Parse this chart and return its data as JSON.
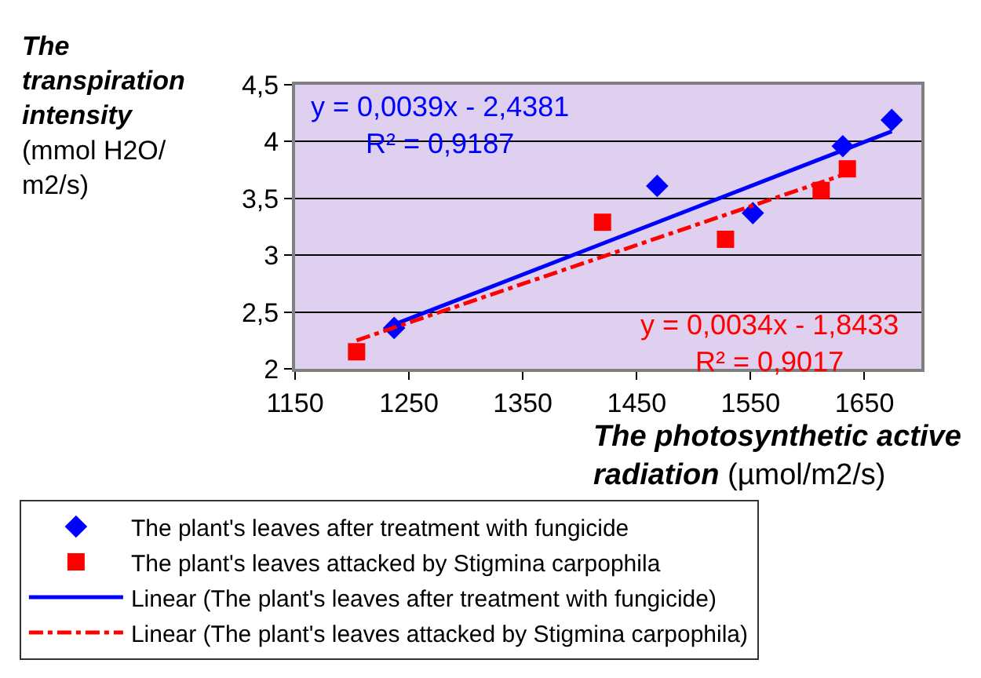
{
  "chart_data": {
    "type": "scatter",
    "xlabel": "The photosynthetic active radiation (µmol/m2/s)",
    "ylabel": "The transpiration intensity (mmol H2O/ m2/s)",
    "series": [
      {
        "name": "The plant's leaves after treatment with fungicide",
        "marker": "diamond",
        "color": "#0000ff",
        "x": [
          1237,
          1468,
          1552,
          1631,
          1674
        ],
        "values": [
          2.36,
          3.61,
          3.37,
          3.96,
          4.19
        ]
      },
      {
        "name": "The plant's leaves attacked by Stigmina carpophila",
        "marker": "square",
        "color": "#ff0000",
        "x": [
          1204,
          1420,
          1528,
          1612,
          1635
        ],
        "values": [
          2.15,
          3.29,
          3.14,
          3.57,
          3.76
        ]
      },
      {
        "name": "Linear (The plant's leaves after treatment with fungicide)",
        "type": "line",
        "line_style": "solid",
        "color": "#0000ff",
        "x": [
          1237,
          1674
        ],
        "values": [
          2.39,
          4.09
        ]
      },
      {
        "name": "Linear (The plant's leaves attacked by Stigmina carpophila)",
        "type": "line",
        "line_style": "dashdot",
        "color": "#ff0000",
        "x": [
          1204,
          1635
        ],
        "values": [
          2.25,
          3.72
        ]
      }
    ],
    "annotations": [
      "y = 0,0039x - 2,4381\nR² = 0,9187",
      "y = 0,0034x - 1,8433\nR² = 0,9017"
    ],
    "xlim": [
      1150,
      1700
    ],
    "xticks": [
      1150,
      1250,
      1350,
      1450,
      1550,
      1650
    ],
    "ylim": [
      2,
      4.5
    ],
    "yticks": [
      2,
      {
        "value": 2.5,
        "label": "2,5"
      },
      3,
      {
        "value": 3.5,
        "label": "3,5"
      },
      4,
      {
        "value": 4.5,
        "label": "4,5"
      }
    ],
    "grid": "y",
    "legend": "bottom"
  }
}
